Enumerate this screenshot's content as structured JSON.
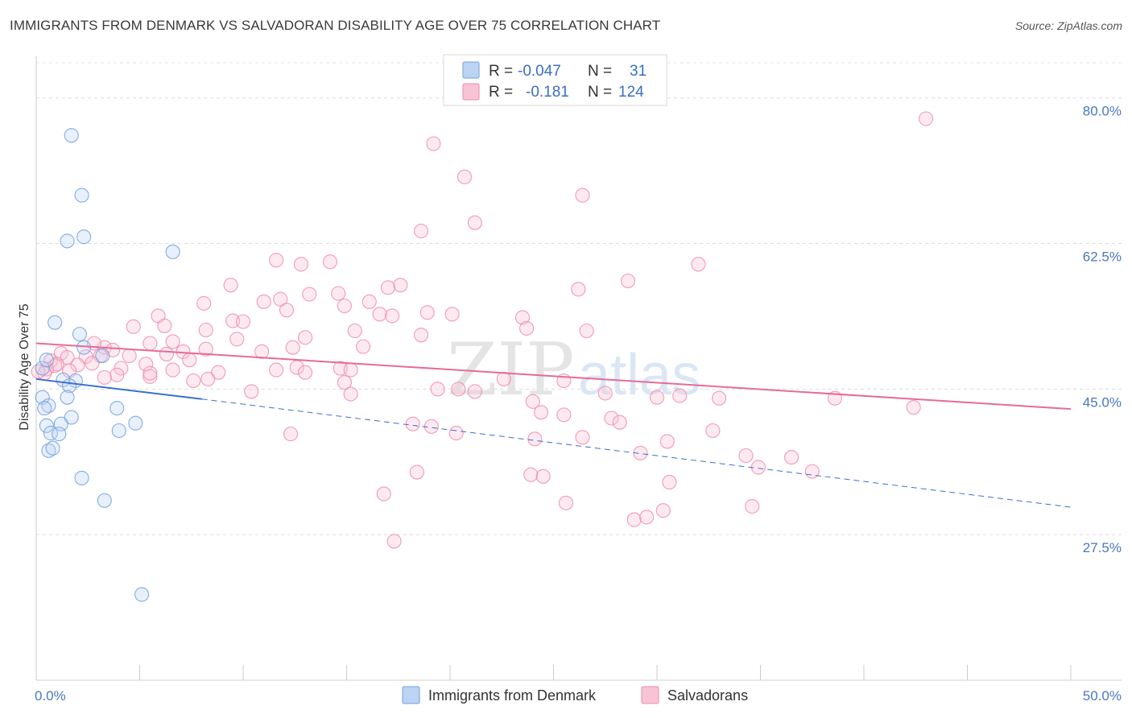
{
  "title": "IMMIGRANTS FROM DENMARK VS SALVADORAN DISABILITY AGE OVER 75 CORRELATION CHART",
  "source": "Source: ZipAtlas.com",
  "watermark": {
    "zip": "ZIP",
    "atlas": "atlas"
  },
  "chart_data": {
    "type": "scatter",
    "title": "IMMIGRANTS FROM DENMARK VS SALVADORAN DISABILITY AGE OVER 75 CORRELATION CHART",
    "xlabel": "",
    "ylabel": "Disability Age Over 75",
    "xlim": [
      0,
      50
    ],
    "ylim": [
      10,
      85
    ],
    "x_tick_labels": {
      "0": "0.0%",
      "50": "50.0%"
    },
    "y_ticks": [
      27.5,
      45.0,
      62.5,
      80.0
    ],
    "y_tick_labels": [
      "27.5%",
      "45.0%",
      "62.5%",
      "80.0%"
    ],
    "grid": true,
    "legend_placement": "top-center",
    "colors": {
      "denmark": "#6fa0e0",
      "salvadoran": "#f08aad",
      "denmark_line": "#3a6fd0",
      "salvadoran_line": "#e86a95"
    },
    "stats": [
      {
        "r_label": "R =",
        "r": "-0.047",
        "n_label": "N =",
        "n": "31"
      },
      {
        "r_label": "R =",
        "r": "-0.181",
        "n_label": "N =",
        "n": "124"
      }
    ],
    "series": [
      {
        "name": "Immigrants from Denmark",
        "trend": {
          "x0": 0,
          "y0": 46.2,
          "x1": 8,
          "y1": 43.8,
          "dash_x1": 50,
          "dash_y1": 30.8
        },
        "points": [
          [
            1.7,
            75.5
          ],
          [
            2.2,
            68.3
          ],
          [
            1.5,
            62.8
          ],
          [
            2.3,
            63.3
          ],
          [
            6.6,
            61.5
          ],
          [
            0.9,
            53.0
          ],
          [
            2.1,
            51.6
          ],
          [
            2.3,
            50.0
          ],
          [
            3.2,
            49.0
          ],
          [
            0.3,
            47.5
          ],
          [
            0.5,
            48.5
          ],
          [
            1.3,
            46.1
          ],
          [
            1.9,
            46.0
          ],
          [
            1.6,
            45.4
          ],
          [
            0.3,
            44.0
          ],
          [
            1.5,
            44.0
          ],
          [
            0.6,
            43.0
          ],
          [
            0.4,
            42.7
          ],
          [
            3.9,
            42.7
          ],
          [
            1.7,
            41.6
          ],
          [
            1.2,
            40.8
          ],
          [
            0.5,
            40.6
          ],
          [
            4.8,
            40.9
          ],
          [
            0.7,
            39.7
          ],
          [
            1.1,
            39.6
          ],
          [
            4.0,
            40.0
          ],
          [
            0.6,
            37.6
          ],
          [
            0.8,
            37.9
          ],
          [
            2.2,
            34.3
          ],
          [
            3.3,
            31.6
          ],
          [
            5.1,
            20.3
          ]
        ]
      },
      {
        "name": "Salvadorans",
        "trend": {
          "x0": 0,
          "y0": 50.5,
          "x1": 50,
          "y1": 42.6
        },
        "points": [
          [
            43.0,
            77.5
          ],
          [
            19.2,
            74.5
          ],
          [
            20.7,
            70.5
          ],
          [
            26.4,
            68.3
          ],
          [
            21.2,
            65.0
          ],
          [
            18.6,
            64.0
          ],
          [
            11.6,
            60.5
          ],
          [
            12.8,
            60.0
          ],
          [
            14.2,
            60.3
          ],
          [
            32.0,
            60.0
          ],
          [
            28.6,
            58.0
          ],
          [
            9.4,
            57.5
          ],
          [
            17.6,
            57.5
          ],
          [
            17.0,
            57.2
          ],
          [
            26.2,
            57.0
          ],
          [
            13.2,
            56.4
          ],
          [
            14.6,
            56.5
          ],
          [
            16.1,
            55.5
          ],
          [
            8.1,
            55.3
          ],
          [
            11.0,
            55.5
          ],
          [
            11.8,
            55.8
          ],
          [
            14.9,
            55.0
          ],
          [
            12.1,
            54.5
          ],
          [
            9.5,
            53.2
          ],
          [
            16.6,
            54.0
          ],
          [
            17.2,
            53.8
          ],
          [
            18.9,
            54.2
          ],
          [
            20.1,
            54.0
          ],
          [
            23.5,
            53.6
          ],
          [
            10.0,
            53.1
          ],
          [
            5.9,
            53.8
          ],
          [
            4.7,
            52.5
          ],
          [
            6.2,
            52.6
          ],
          [
            8.2,
            52.1
          ],
          [
            15.4,
            52.0
          ],
          [
            18.6,
            51.5
          ],
          [
            23.7,
            52.3
          ],
          [
            26.6,
            52.0
          ],
          [
            13.0,
            51.2
          ],
          [
            15.8,
            50.1
          ],
          [
            12.4,
            50.0
          ],
          [
            3.3,
            50.0
          ],
          [
            5.5,
            50.5
          ],
          [
            6.6,
            50.7
          ],
          [
            9.7,
            51.0
          ],
          [
            3.7,
            49.7
          ],
          [
            7.1,
            49.5
          ],
          [
            8.2,
            49.8
          ],
          [
            10.9,
            49.5
          ],
          [
            2.8,
            50.5
          ],
          [
            1.2,
            49.3
          ],
          [
            1.5,
            48.8
          ],
          [
            2.4,
            48.9
          ],
          [
            3.1,
            49.0
          ],
          [
            4.5,
            49.0
          ],
          [
            6.3,
            49.2
          ],
          [
            7.4,
            48.5
          ],
          [
            0.7,
            48.4
          ],
          [
            0.9,
            47.8
          ],
          [
            1.0,
            48.0
          ],
          [
            2.0,
            47.9
          ],
          [
            2.7,
            48.1
          ],
          [
            0.5,
            47.4
          ],
          [
            1.6,
            47.2
          ],
          [
            0.4,
            46.9
          ],
          [
            0.1,
            47.1
          ],
          [
            4.1,
            47.5
          ],
          [
            5.3,
            48.0
          ],
          [
            6.6,
            47.3
          ],
          [
            8.8,
            47.0
          ],
          [
            11.6,
            47.3
          ],
          [
            12.6,
            47.6
          ],
          [
            13.0,
            47.0
          ],
          [
            14.7,
            47.5
          ],
          [
            15.2,
            47.3
          ],
          [
            3.9,
            46.7
          ],
          [
            5.5,
            46.5
          ],
          [
            7.6,
            46.0
          ],
          [
            8.3,
            46.2
          ],
          [
            22.6,
            46.2
          ],
          [
            25.5,
            46.0
          ],
          [
            3.3,
            46.4
          ],
          [
            5.5,
            46.9
          ],
          [
            14.9,
            45.8
          ],
          [
            19.4,
            45.0
          ],
          [
            20.4,
            45.0
          ],
          [
            21.2,
            44.7
          ],
          [
            10.4,
            44.7
          ],
          [
            15.2,
            44.4
          ],
          [
            27.5,
            44.5
          ],
          [
            24.0,
            43.5
          ],
          [
            30.0,
            44.0
          ],
          [
            31.1,
            44.2
          ],
          [
            33.0,
            43.9
          ],
          [
            38.6,
            43.9
          ],
          [
            42.4,
            42.8
          ],
          [
            24.4,
            42.2
          ],
          [
            25.5,
            41.9
          ],
          [
            27.8,
            41.5
          ],
          [
            28.2,
            41.0
          ],
          [
            18.2,
            40.8
          ],
          [
            19.1,
            40.5
          ],
          [
            20.3,
            39.7
          ],
          [
            32.7,
            40.0
          ],
          [
            12.3,
            39.6
          ],
          [
            26.4,
            39.2
          ],
          [
            24.1,
            39.0
          ],
          [
            29.2,
            37.3
          ],
          [
            30.5,
            38.7
          ],
          [
            34.3,
            37.0
          ],
          [
            36.5,
            36.8
          ],
          [
            34.9,
            35.6
          ],
          [
            37.5,
            35.1
          ],
          [
            18.4,
            35.0
          ],
          [
            23.9,
            34.7
          ],
          [
            24.5,
            34.5
          ],
          [
            30.6,
            33.8
          ],
          [
            16.8,
            32.4
          ],
          [
            25.6,
            31.3
          ],
          [
            34.6,
            30.9
          ],
          [
            30.3,
            30.4
          ],
          [
            28.9,
            29.3
          ],
          [
            29.5,
            29.6
          ],
          [
            17.3,
            26.7
          ]
        ]
      }
    ]
  },
  "legend": {
    "series1": "Immigrants from Denmark",
    "series2": "Salvadorans"
  }
}
